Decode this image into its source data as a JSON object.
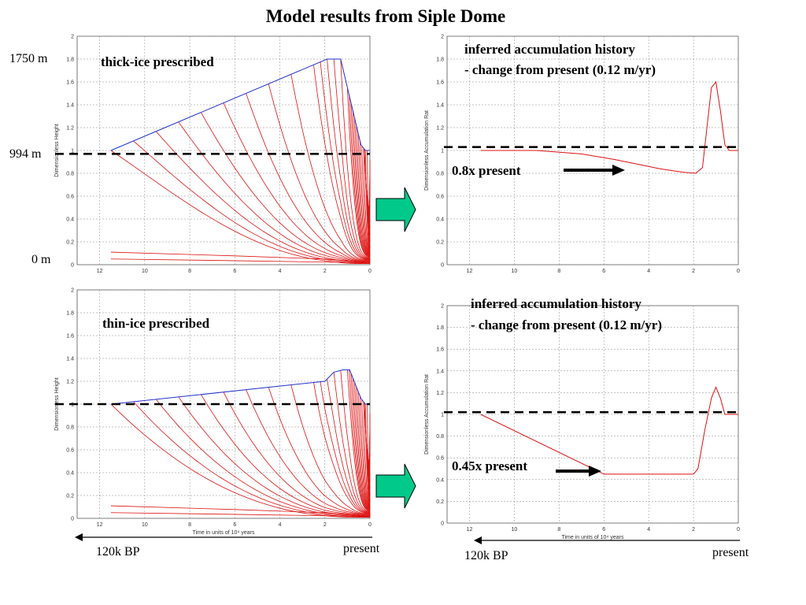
{
  "title": "Model results from Siple Dome",
  "left_labels": {
    "top": "1750 m",
    "mid": "994 m",
    "bottom": "0 m"
  },
  "bottom_labels": {
    "left_start": "120k BP",
    "left_end": "present",
    "right_start": "120k BP",
    "right_end": "present"
  },
  "panels": {
    "tl": {
      "caption": "thick-ice prescribed",
      "ylabel": "Dimensionless Height"
    },
    "tr": {
      "caption_line1": "inferred accumulation history",
      "caption_line2": "- change from present (0.12 m/yr)",
      "arrow_label": "0.8x present",
      "ylabel": "Dimensionless Accumulation Rat"
    },
    "bl": {
      "caption": "thin-ice prescribed",
      "ylabel": "Dimensionless Height",
      "xlabel": "Time in units of 10⁴ years"
    },
    "br": {
      "caption_line1": "inferred accumulation history",
      "caption_line2": "- change from present (0.12 m/yr)",
      "arrow_label": "0.45x present",
      "ylabel": "Dimensionless Accumulation Rat",
      "xlabel": "Time in units of 10⁴ years"
    }
  },
  "colors": {
    "isochrone": "#dd1111",
    "surface": "#2233cc",
    "arrow_fill": "#00c98a",
    "reference_line": "#000000"
  },
  "chart_data": [
    {
      "id": "thick-ice",
      "type": "line",
      "xlim": [
        13,
        0
      ],
      "ylim": [
        0,
        2
      ],
      "xticks": [
        12,
        10,
        8,
        6,
        4,
        2,
        0
      ],
      "yticks": [
        0,
        0.2,
        0.4,
        0.6,
        0.8,
        1,
        1.2,
        1.4,
        1.6,
        1.8,
        2
      ],
      "surface": {
        "x": [
          11.5,
          1.9,
          1.3,
          0.4,
          0.2,
          0.0
        ],
        "y": [
          1.0,
          1.8,
          1.8,
          1.05,
          1.0,
          1.0
        ]
      },
      "reference_line_y": 0.97,
      "isochrones": "red curves descending from the surface toward the bed",
      "grid": true
    },
    {
      "id": "thick-ice-accumulation",
      "type": "line",
      "xlim": [
        13,
        0
      ],
      "ylim": [
        0,
        2
      ],
      "xticks": [
        12,
        10,
        8,
        6,
        4,
        2,
        0
      ],
      "yticks": [
        0,
        0.2,
        0.4,
        0.6,
        0.8,
        1,
        1.2,
        1.4,
        1.6,
        1.8,
        2
      ],
      "x": [
        11.5,
        9,
        7,
        5.5,
        4.5,
        3.5,
        2.5,
        1.9,
        1.6,
        1.4,
        1.2,
        1.0,
        0.8,
        0.6,
        0.4,
        0.2,
        0.0
      ],
      "y": [
        1.0,
        1.0,
        0.97,
        0.92,
        0.88,
        0.84,
        0.81,
        0.8,
        0.85,
        1.2,
        1.55,
        1.6,
        1.35,
        1.05,
        1.0,
        1.0,
        1.0
      ],
      "reference_line_y": 1.03,
      "grid": true
    },
    {
      "id": "thin-ice",
      "type": "line",
      "xlim": [
        13,
        0
      ],
      "ylim": [
        0,
        2
      ],
      "xticks": [
        12,
        10,
        8,
        6,
        4,
        2,
        0
      ],
      "yticks": [
        0,
        0.2,
        0.4,
        0.6,
        0.8,
        1,
        1.2,
        1.4,
        1.6,
        1.8,
        2
      ],
      "surface": {
        "x": [
          11.5,
          2.0,
          1.6,
          1.2,
          0.9,
          0.4,
          0.2,
          0.0
        ],
        "y": [
          1.0,
          1.2,
          1.28,
          1.3,
          1.3,
          1.05,
          1.0,
          1.0
        ]
      },
      "reference_line_y": 1.0,
      "isochrones": "red curves descending from the surface toward the bed",
      "grid": true
    },
    {
      "id": "thin-ice-accumulation",
      "type": "line",
      "xlim": [
        13,
        0
      ],
      "ylim": [
        0,
        2
      ],
      "xticks": [
        12,
        10,
        8,
        6,
        4,
        2,
        0
      ],
      "yticks": [
        0,
        0.2,
        0.4,
        0.6,
        0.8,
        1,
        1.2,
        1.4,
        1.6,
        1.8,
        2
      ],
      "x": [
        11.5,
        6.0,
        5.8,
        2.0,
        1.8,
        1.5,
        1.2,
        1.0,
        0.8,
        0.6,
        0.4,
        0.2,
        0.0
      ],
      "y": [
        1.0,
        0.45,
        0.45,
        0.45,
        0.5,
        0.85,
        1.15,
        1.25,
        1.15,
        1.0,
        1.0,
        1.0,
        1.0
      ],
      "reference_line_y": 1.02,
      "grid": true
    }
  ]
}
